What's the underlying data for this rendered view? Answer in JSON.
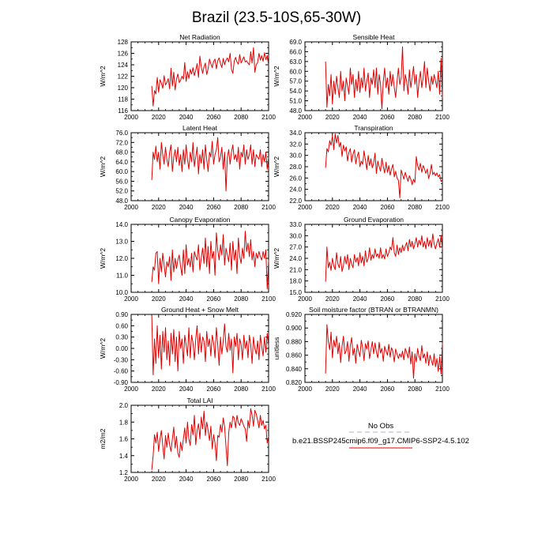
{
  "figure_title": "Brazil (23.5-10S,65-30W)",
  "legend": {
    "obs_label": "No Obs",
    "obs_color": "#a9b3c8",
    "model_label": "b.e21.BSSP245cmip6.f09_g17.CMIP6-SSP2-4.5.102",
    "model_color": "#e00000"
  },
  "chart_data": [
    {
      "type": "line",
      "title": "Net Radiation",
      "ylabel": "W/m^2",
      "xlim": [
        2000,
        2100
      ],
      "xticks": [
        "2000",
        "2020",
        "2040",
        "2060",
        "2080",
        "2100"
      ],
      "ylim": [
        116,
        128
      ],
      "yticks": [
        "116",
        "118",
        "120",
        "122",
        "124",
        "126",
        "128"
      ],
      "x_start": 2015,
      "series": [
        {
          "color": "#e00000",
          "values": [
            120.3,
            116.8,
            119.5,
            118.9,
            121.8,
            119.2,
            121.4,
            120.8,
            119.9,
            122.1,
            120.5,
            120.9,
            121.6,
            119.8,
            123.4,
            120.3,
            122.7,
            119.6,
            121.5,
            122.4,
            120.9,
            121.3,
            122.0,
            121.5,
            124.4,
            121.1,
            122.8,
            121.6,
            123.2,
            122.4,
            123.5,
            122.1,
            123.0,
            124.2,
            121.8,
            125.5,
            123.7,
            122.5,
            123.6,
            124.3,
            122.3,
            123.3,
            125.0,
            124.2,
            123.5,
            124.6,
            125.0,
            123.3,
            124.7,
            125.2,
            124.2,
            123.5,
            125.1,
            124.0,
            124.8,
            125.2,
            124.5,
            126.0,
            123.2,
            122.5,
            124.6,
            125.3,
            124.5,
            124.1,
            125.8,
            124.3,
            124.8,
            125.4,
            124.5,
            124.7,
            124.3,
            124.0,
            126.3,
            124.3,
            127.0,
            122.7,
            124.0,
            124.4,
            126.0,
            124.8,
            125.6,
            124.6,
            126.1,
            124.9,
            125.6,
            123.9
          ]
        }
      ]
    },
    {
      "type": "line",
      "title": "Sensible Heat",
      "ylabel": "W/m^2",
      "xlim": [
        2000,
        2100
      ],
      "xticks": [
        "2000",
        "2020",
        "2040",
        "2060",
        "2080",
        "2100"
      ],
      "ylim": [
        48,
        69
      ],
      "yticks": [
        "48.0",
        "51.0",
        "54.0",
        "57.0",
        "60.0",
        "63.0",
        "66.0",
        "69.0"
      ],
      "x_start": 2015,
      "series": [
        {
          "color": "#e00000",
          "values": [
            63.0,
            49.0,
            56.0,
            52.5,
            59.0,
            50.0,
            57.0,
            53.0,
            58.5,
            55.0,
            52.0,
            60.0,
            54.0,
            57.0,
            51.0,
            58.0,
            55.5,
            53.0,
            61.0,
            56.0,
            59.0,
            52.0,
            57.5,
            54.0,
            60.0,
            53.5,
            58.0,
            55.0,
            61.0,
            54.0,
            57.0,
            59.5,
            52.0,
            58.0,
            56.0,
            60.5,
            55.0,
            61.0,
            53.0,
            59.0,
            56.0,
            48.5,
            57.0,
            61.0,
            55.0,
            58.0,
            53.0,
            60.0,
            55.5,
            59.0,
            55.0,
            52.0,
            57.0,
            61.0,
            56.0,
            58.0,
            67.5,
            54.0,
            59.0,
            57.0,
            53.0,
            60.5,
            55.0,
            58.0,
            61.5,
            56.0,
            59.0,
            52.0,
            57.0,
            60.0,
            55.0,
            58.0,
            63.0,
            55.0,
            61.0,
            57.0,
            54.0,
            58.5,
            56.0,
            59.0,
            57.0,
            55.0,
            60.0,
            53.0,
            64.0,
            52.0
          ]
        }
      ]
    },
    {
      "type": "line",
      "title": "Latent Heat",
      "ylabel": "W/m^2",
      "xlim": [
        2000,
        2100
      ],
      "xticks": [
        "2000",
        "2020",
        "2040",
        "2060",
        "2080",
        "2100"
      ],
      "ylim": [
        48,
        76
      ],
      "yticks": [
        "48.0",
        "52.0",
        "56.0",
        "60.0",
        "64.0",
        "68.0",
        "72.0",
        "76.0"
      ],
      "x_start": 2015,
      "series": [
        {
          "color": "#e00000",
          "values": [
            56.5,
            68.0,
            65.0,
            70.5,
            64.0,
            68.0,
            61.0,
            72.0,
            67.0,
            63.0,
            70.0,
            65.0,
            62.0,
            68.0,
            71.0,
            60.0,
            66.0,
            69.0,
            64.0,
            70.0,
            62.5,
            67.0,
            60.0,
            69.0,
            63.0,
            71.0,
            65.0,
            61.0,
            68.0,
            64.0,
            72.0,
            62.0,
            66.0,
            70.0,
            59.0,
            67.0,
            63.5,
            69.0,
            61.0,
            71.0,
            65.0,
            60.0,
            68.0,
            66.0,
            72.5,
            63.0,
            67.0,
            69.0,
            74.0,
            64.0,
            66.0,
            70.0,
            61.0,
            68.0,
            52.0,
            66.0,
            69.0,
            63.0,
            68.0,
            71.0,
            65.0,
            67.0,
            64.0,
            70.0,
            61.0,
            68.0,
            66.0,
            71.0,
            63.0,
            69.0,
            65.0,
            67.0,
            71.0,
            63.0,
            69.0,
            62.0,
            67.0,
            66.0,
            65.0,
            69.0,
            62.0,
            67.0,
            64.0,
            68.0,
            61.0,
            66.0
          ]
        }
      ]
    },
    {
      "type": "line",
      "title": "Transpiration",
      "ylabel": "W/m^2",
      "xlim": [
        2000,
        2100
      ],
      "xticks": [
        "2000",
        "2020",
        "2040",
        "2060",
        "2080",
        "2100"
      ],
      "ylim": [
        22,
        34
      ],
      "yticks": [
        "22.0",
        "24.0",
        "26.0",
        "28.0",
        "30.0",
        "32.0",
        "34.0"
      ],
      "x_start": 2015,
      "series": [
        {
          "color": "#e00000",
          "values": [
            27.8,
            31.2,
            30.6,
            32.6,
            31.8,
            33.5,
            31.0,
            33.8,
            32.2,
            33.5,
            31.5,
            32.3,
            29.8,
            31.8,
            30.8,
            31.5,
            29.0,
            30.5,
            31.2,
            28.8,
            30.2,
            31.0,
            28.5,
            29.8,
            30.6,
            28.0,
            29.0,
            28.4,
            30.8,
            29.2,
            27.5,
            30.0,
            28.2,
            29.4,
            27.8,
            28.6,
            30.4,
            26.8,
            29.0,
            28.0,
            27.2,
            29.5,
            28.0,
            26.9,
            28.8,
            27.0,
            28.2,
            26.5,
            27.6,
            28.4,
            26.2,
            27.2,
            26.0,
            25.6,
            22.5,
            27.4,
            26.6,
            25.8,
            27.0,
            26.2,
            25.4,
            26.4,
            25.8,
            24.8,
            25.8,
            25.2,
            29.8,
            28.2,
            27.4,
            28.6,
            27.0,
            28.2,
            27.6,
            26.8,
            27.6,
            25.9,
            26.8,
            28.4,
            26.6,
            27.0,
            26.4,
            26.9,
            26.2,
            26.6,
            25.4,
            25.7
          ]
        }
      ]
    },
    {
      "type": "line",
      "title": "Canopy Evaporation",
      "ylabel": "W/m^2",
      "xlim": [
        2000,
        2100
      ],
      "xticks": [
        "2000",
        "2020",
        "2040",
        "2060",
        "2080",
        "2100"
      ],
      "ylim": [
        10,
        14
      ],
      "yticks": [
        "10.0",
        "11.0",
        "12.0",
        "13.0",
        "14.0"
      ],
      "x_start": 2015,
      "series": [
        {
          "color": "#e00000",
          "values": [
            10.6,
            11.5,
            11.3,
            12.3,
            12.4,
            10.5,
            12.0,
            11.2,
            12.3,
            11.6,
            10.9,
            11.8,
            11.5,
            12.1,
            10.7,
            12.5,
            11.2,
            12.0,
            11.4,
            11.9,
            12.2,
            11.5,
            11.0,
            12.5,
            11.1,
            12.8,
            11.6,
            12.0,
            11.5,
            12.3,
            11.2,
            12.4,
            12.1,
            11.9,
            12.8,
            11.3,
            12.0,
            12.6,
            11.7,
            13.2,
            11.5,
            12.7,
            11.1,
            13.0,
            12.0,
            12.4,
            11.0,
            13.5,
            12.5,
            11.9,
            12.8,
            12.2,
            13.4,
            11.6,
            12.6,
            12.2,
            11.8,
            12.9,
            11.3,
            13.0,
            11.9,
            12.5,
            11.1,
            13.2,
            12.1,
            11.7,
            12.6,
            12.0,
            13.6,
            12.4,
            12.9,
            12.1,
            13.1,
            11.9,
            12.4,
            11.5,
            12.3,
            12.0,
            12.4,
            12.1,
            11.9,
            12.4,
            12.0,
            12.5,
            10.2,
            11.9
          ]
        }
      ]
    },
    {
      "type": "line",
      "title": "Ground Evaporation",
      "ylabel": "W/m^2",
      "xlim": [
        2000,
        2100
      ],
      "xticks": [
        "2000",
        "2020",
        "2040",
        "2060",
        "2080",
        "2100"
      ],
      "ylim": [
        15,
        33
      ],
      "yticks": [
        "15.0",
        "18.0",
        "21.0",
        "24.0",
        "27.0",
        "30.0",
        "33.0"
      ],
      "x_start": 2015,
      "series": [
        {
          "color": "#e00000",
          "values": [
            17.8,
            27.0,
            21.5,
            23.0,
            20.8,
            24.0,
            22.0,
            21.0,
            25.5,
            22.5,
            21.5,
            24.5,
            20.5,
            22.0,
            24.5,
            22.5,
            25.0,
            21.0,
            24.0,
            22.5,
            21.5,
            25.0,
            23.0,
            24.2,
            22.0,
            25.5,
            22.8,
            24.5,
            22.0,
            26.0,
            23.0,
            24.0,
            26.8,
            23.5,
            25.0,
            24.0,
            26.5,
            24.5,
            25.2,
            24.0,
            26.8,
            24.0,
            25.0,
            23.8,
            26.5,
            24.5,
            25.5,
            27.0,
            26.2,
            29.5,
            25.5,
            24.5,
            27.5,
            25.0,
            26.8,
            25.5,
            27.5,
            26.0,
            27.2,
            28.2,
            26.0,
            29.0,
            27.0,
            28.5,
            26.5,
            27.8,
            29.5,
            27.0,
            28.8,
            27.5,
            30.0,
            27.0,
            28.5,
            26.5,
            29.5,
            27.2,
            28.8,
            26.8,
            30.5,
            27.8,
            26.5,
            28.0,
            29.2,
            27.0,
            30.0,
            26.5
          ]
        }
      ]
    },
    {
      "type": "line",
      "title": "Ground Heat + Snow Melt",
      "ylabel": "W/m^2",
      "xlim": [
        2000,
        2100
      ],
      "xticks": [
        "2000",
        "2020",
        "2040",
        "2060",
        "2080",
        "2100"
      ],
      "ylim": [
        -0.9,
        0.9
      ],
      "yticks": [
        "-0.90",
        "-0.60",
        "-0.30",
        "0.00",
        "0.30",
        "0.60",
        "0.90"
      ],
      "x_start": 2015,
      "series": [
        {
          "color": "#e00000",
          "values": [
            0.88,
            -0.7,
            0.25,
            -0.4,
            0.6,
            -0.25,
            0.35,
            -0.55,
            0.45,
            -0.1,
            0.55,
            -0.3,
            0.2,
            -0.45,
            0.4,
            -0.15,
            0.5,
            -0.35,
            0.3,
            -0.6,
            0.45,
            0.0,
            0.25,
            -0.4,
            0.35,
            0.1,
            -0.2,
            0.55,
            -0.25,
            0.35,
            0.15,
            -0.3,
            0.25,
            0.6,
            -0.15,
            0.4,
            -0.1,
            0.3,
            0.2,
            -0.35,
            0.45,
            0.05,
            0.25,
            -0.2,
            0.35,
            0.15,
            -0.25,
            0.55,
            0.1,
            -0.45,
            0.3,
            -0.15,
            0.2,
            0.65,
            0.05,
            -0.1,
            0.4,
            -0.05,
            0.25,
            -0.65,
            0.3,
            0.05,
            0.4,
            -0.3,
            0.25,
            0.1,
            -0.3,
            0.35,
            0.0,
            0.2,
            -0.25,
            0.35,
            0.1,
            -0.4,
            0.3,
            0.0,
            -0.15,
            0.2,
            -0.3,
            0.35,
            0.05,
            -0.2,
            0.3,
            -0.1,
            0.4,
            0.05
          ]
        }
      ]
    },
    {
      "type": "line",
      "title": "Soil moisture factor (BTRAN or BTRANMN)",
      "ylabel": "unitless",
      "xlim": [
        2000,
        2100
      ],
      "xticks": [
        "2000",
        "2020",
        "2040",
        "2060",
        "2080",
        "2100"
      ],
      "ylim": [
        0.82,
        0.92
      ],
      "yticks": [
        "0.820",
        "0.840",
        "0.860",
        "0.880",
        "0.900",
        "0.920"
      ],
      "x_start": 2015,
      "series": [
        {
          "color": "#e00000",
          "values": [
            0.833,
            0.905,
            0.88,
            0.868,
            0.894,
            0.856,
            0.882,
            0.872,
            0.888,
            0.862,
            0.878,
            0.849,
            0.873,
            0.888,
            0.862,
            0.866,
            0.88,
            0.851,
            0.874,
            0.886,
            0.86,
            0.87,
            0.848,
            0.876,
            0.866,
            0.858,
            0.882,
            0.871,
            0.852,
            0.877,
            0.869,
            0.881,
            0.855,
            0.868,
            0.88,
            0.862,
            0.878,
            0.864,
            0.856,
            0.879,
            0.863,
            0.87,
            0.851,
            0.873,
            0.866,
            0.86,
            0.876,
            0.857,
            0.871,
            0.865,
            0.85,
            0.869,
            0.862,
            0.855,
            0.862,
            0.857,
            0.866,
            0.853,
            0.87,
            0.864,
            0.856,
            0.872,
            0.847,
            0.865,
            0.826,
            0.862,
            0.85,
            0.87,
            0.858,
            0.852,
            0.874,
            0.856,
            0.862,
            0.848,
            0.865,
            0.845,
            0.86,
            0.852,
            0.845,
            0.862,
            0.843,
            0.855,
            0.836,
            0.858,
            0.832,
            0.878
          ]
        }
      ]
    },
    {
      "type": "line",
      "title": "Total LAI",
      "ylabel": "m2/m2",
      "xlim": [
        2000,
        2100
      ],
      "xticks": [
        "2000",
        "2020",
        "2040",
        "2060",
        "2080",
        "2100"
      ],
      "ylim": [
        1.2,
        2.0
      ],
      "yticks": [
        "1.2",
        "1.4",
        "1.6",
        "1.8",
        "2.0"
      ],
      "x_start": 2015,
      "series": [
        {
          "color": "#e00000",
          "values": [
            1.23,
            1.4,
            1.65,
            1.55,
            1.68,
            1.45,
            1.6,
            1.7,
            1.52,
            1.36,
            1.64,
            1.5,
            1.67,
            1.53,
            1.45,
            1.6,
            1.74,
            1.49,
            1.63,
            1.43,
            1.38,
            1.56,
            1.46,
            1.6,
            1.73,
            1.55,
            1.8,
            1.6,
            1.52,
            1.77,
            1.65,
            1.88,
            1.53,
            1.7,
            1.78,
            1.6,
            1.86,
            1.72,
            1.93,
            1.64,
            1.8,
            1.7,
            1.58,
            1.75,
            1.48,
            1.65,
            1.55,
            1.34,
            1.64,
            1.62,
            1.77,
            1.68,
            1.85,
            1.74,
            1.51,
            1.28,
            1.68,
            1.8,
            1.73,
            1.87,
            1.85,
            1.73,
            1.88,
            1.79,
            1.76,
            1.84,
            1.8,
            1.75,
            1.72,
            1.57,
            1.82,
            1.73,
            1.96,
            1.88,
            1.75,
            1.94,
            1.9,
            1.82,
            1.73,
            1.88,
            1.76,
            1.82,
            1.72,
            1.76,
            1.55,
            1.63
          ]
        }
      ]
    }
  ]
}
